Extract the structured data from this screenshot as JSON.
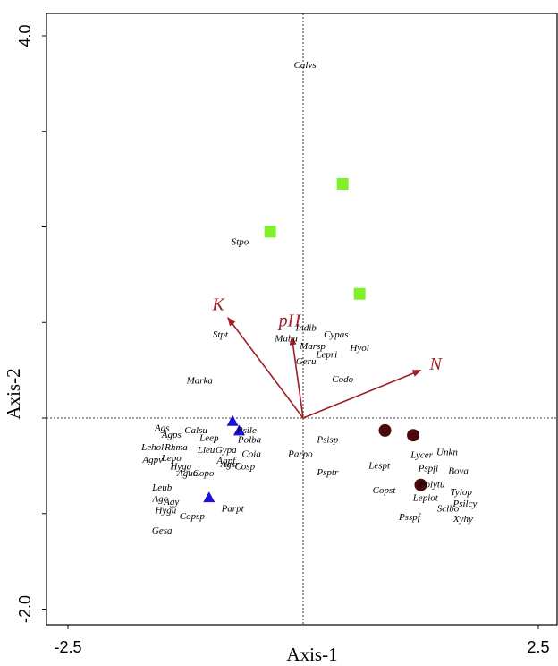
{
  "chart_data": {
    "type": "scatter",
    "xlabel": "Axis-1",
    "ylabel": "Axis-2",
    "xlim": [
      -2.5,
      2.5
    ],
    "ylim": [
      -2.0,
      4.0
    ],
    "x_tick_labels": [
      {
        "value": -2.5,
        "label": "-2.5"
      },
      {
        "value": 2.5,
        "label": "2.5"
      }
    ],
    "y_tick_labels": [
      {
        "value": 4.0,
        "label": "4.0"
      },
      {
        "value": -2.0,
        "label": "-2.0"
      }
    ],
    "y_minor_ticks": [
      3,
      2,
      1,
      0,
      -1
    ],
    "reference_lines": {
      "x": 0,
      "y": 0
    },
    "env_vectors": [
      {
        "name": "K",
        "x": -0.8,
        "y": 1.05
      },
      {
        "name": "pH",
        "x": -0.12,
        "y": 0.85
      },
      {
        "name": "N",
        "x": 1.25,
        "y": 0.5
      }
    ],
    "groups": [
      {
        "marker": "square",
        "color": "#7ff02a",
        "points": [
          {
            "x": 0.42,
            "y": 2.45
          },
          {
            "x": -0.35,
            "y": 1.95
          },
          {
            "x": 0.6,
            "y": 1.3
          }
        ]
      },
      {
        "marker": "circle",
        "color": "#4a0a0d",
        "points": [
          {
            "x": 0.87,
            "y": -0.13
          },
          {
            "x": 1.17,
            "y": -0.18
          },
          {
            "x": 1.25,
            "y": -0.7
          }
        ]
      },
      {
        "marker": "triangle",
        "color": "#1a10d8",
        "points": [
          {
            "x": -0.75,
            "y": -0.03
          },
          {
            "x": -0.68,
            "y": -0.13
          },
          {
            "x": -1.0,
            "y": -0.83
          }
        ]
      }
    ],
    "species": [
      {
        "label": "Calvs",
        "x": 0.02,
        "y": 3.7
      },
      {
        "label": "Stpo",
        "x": -0.67,
        "y": 1.85
      },
      {
        "label": "Stpt",
        "x": -0.88,
        "y": 0.88
      },
      {
        "label": "Indib",
        "x": 0.03,
        "y": 0.95
      },
      {
        "label": "Cypas",
        "x": 0.35,
        "y": 0.88
      },
      {
        "label": "Mabu",
        "x": -0.18,
        "y": 0.84
      },
      {
        "label": "Marsp",
        "x": 0.1,
        "y": 0.76
      },
      {
        "label": "Lepri",
        "x": 0.25,
        "y": 0.67
      },
      {
        "label": "Hyol",
        "x": 0.6,
        "y": 0.74
      },
      {
        "label": "Geru",
        "x": 0.03,
        "y": 0.6
      },
      {
        "label": "Marka",
        "x": -1.1,
        "y": 0.4
      },
      {
        "label": "Codo",
        "x": 0.42,
        "y": 0.41
      },
      {
        "label": "Ags",
        "x": -1.5,
        "y": -0.1
      },
      {
        "label": "Calsu",
        "x": -1.14,
        "y": -0.12
      },
      {
        "label": "Agps",
        "x": -1.4,
        "y": -0.17
      },
      {
        "label": "Psile",
        "x": -0.6,
        "y": -0.12
      },
      {
        "label": "Leep",
        "x": -1.0,
        "y": -0.2
      },
      {
        "label": "Polba",
        "x": -0.57,
        "y": -0.22
      },
      {
        "label": "Lehol",
        "x": -1.6,
        "y": -0.3
      },
      {
        "label": "Rhma",
        "x": -1.35,
        "y": -0.3
      },
      {
        "label": "Lleu",
        "x": -1.03,
        "y": -0.33
      },
      {
        "label": "Gypa",
        "x": -0.82,
        "y": -0.33
      },
      {
        "label": "Coia",
        "x": -0.55,
        "y": -0.37
      },
      {
        "label": "Agpv",
        "x": -1.6,
        "y": -0.43
      },
      {
        "label": "Lepo",
        "x": -1.4,
        "y": -0.41
      },
      {
        "label": "Agpf",
        "x": -0.82,
        "y": -0.44
      },
      {
        "label": "Hygg",
        "x": -1.3,
        "y": -0.5
      },
      {
        "label": "Agsr",
        "x": -0.78,
        "y": -0.48
      },
      {
        "label": "Cosp",
        "x": -0.62,
        "y": -0.5
      },
      {
        "label": "Aguo",
        "x": -1.23,
        "y": -0.57
      },
      {
        "label": "Copo",
        "x": -1.06,
        "y": -0.57
      },
      {
        "label": "Leub",
        "x": -1.5,
        "y": -0.72
      },
      {
        "label": "Agc",
        "x": -1.52,
        "y": -0.84
      },
      {
        "label": "Agy",
        "x": -1.4,
        "y": -0.87
      },
      {
        "label": "Hygu",
        "x": -1.46,
        "y": -0.96
      },
      {
        "label": "Copsp",
        "x": -1.18,
        "y": -1.02
      },
      {
        "label": "Parpt",
        "x": -0.75,
        "y": -0.94
      },
      {
        "label": "Gesa",
        "x": -1.5,
        "y": -1.17
      },
      {
        "label": "Psisp",
        "x": 0.26,
        "y": -0.22
      },
      {
        "label": "Parpo",
        "x": -0.03,
        "y": -0.37
      },
      {
        "label": "Psptr",
        "x": 0.26,
        "y": -0.56
      },
      {
        "label": "Lespt",
        "x": 0.81,
        "y": -0.49
      },
      {
        "label": "Copst",
        "x": 0.86,
        "y": -0.75
      },
      {
        "label": "Lycer",
        "x": 1.26,
        "y": -0.38
      },
      {
        "label": "Unkn",
        "x": 1.53,
        "y": -0.35
      },
      {
        "label": "Pspfi",
        "x": 1.33,
        "y": -0.52
      },
      {
        "label": "Bova",
        "x": 1.65,
        "y": -0.55
      },
      {
        "label": "Polytu",
        "x": 1.37,
        "y": -0.69
      },
      {
        "label": "Tylop",
        "x": 1.68,
        "y": -0.77
      },
      {
        "label": "Lepiot",
        "x": 1.3,
        "y": -0.83
      },
      {
        "label": "Psilcy",
        "x": 1.72,
        "y": -0.89
      },
      {
        "label": "Sclbo",
        "x": 1.54,
        "y": -0.94
      },
      {
        "label": "Psspf",
        "x": 1.13,
        "y": -1.03
      },
      {
        "label": "Xyhy",
        "x": 1.7,
        "y": -1.05
      }
    ]
  }
}
